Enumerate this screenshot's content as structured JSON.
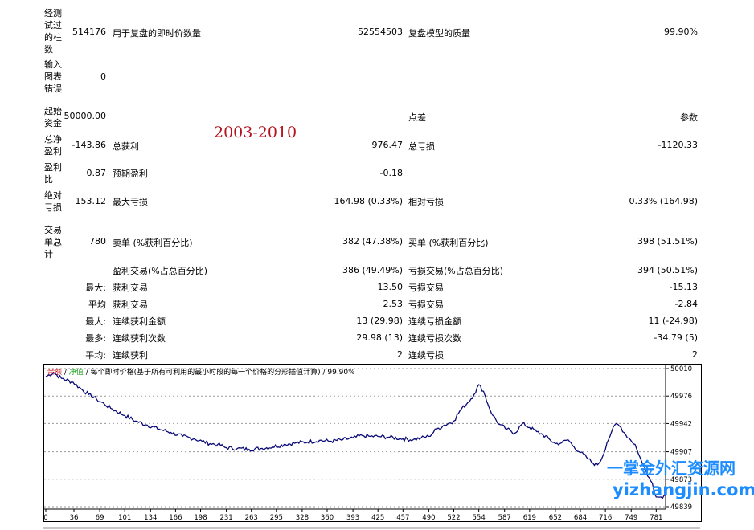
{
  "report": {
    "bars_tested": {
      "label_lines": [
        "经测",
        "试过",
        "的柱",
        "数"
      ],
      "value": "514176"
    },
    "ticks_label": "用于复盘的即时价数量",
    "ticks_value": "52554503",
    "model_quality_label": "复盘模型的质量",
    "model_quality_value": "99.90%",
    "mismatched_charts": {
      "label_lines": [
        "输入",
        "图表",
        "错误"
      ],
      "value": "0"
    },
    "initial_deposit": {
      "label_lines": [
        "起始",
        "资金"
      ],
      "value": "50000.00"
    },
    "spread_label": "点差",
    "params_label": "参数",
    "period_note": "2003-2010",
    "net_profit": {
      "label_lines": [
        "总净",
        "盈利"
      ],
      "value": "-143.86"
    },
    "gross_profit_label": "总获利",
    "gross_profit_value": "976.47",
    "gross_loss_label": "总亏损",
    "gross_loss_value": "-1120.33",
    "profit_factor": {
      "label_lines": [
        "盈利",
        "比"
      ],
      "value": "0.87"
    },
    "expected_payoff_label": "预期盈利",
    "expected_payoff_value": "-0.18",
    "abs_drawdown": {
      "label_lines": [
        "绝对",
        "亏损"
      ],
      "value": "153.12"
    },
    "max_drawdown_label": "最大亏损",
    "max_drawdown_value": "164.98 (0.33%)",
    "rel_drawdown_label": "相对亏损",
    "rel_drawdown_value": "0.33% (164.98)",
    "total_trades": {
      "label_lines": [
        "交易",
        "单总",
        "计"
      ],
      "value": "780"
    },
    "short_label": "卖单 (%获利百分比)",
    "short_value": "382 (47.38%)",
    "long_label": "买单 (%获利百分比)",
    "long_value": "398 (51.51%)",
    "profit_trades_label": "盈利交易(%占总百分比)",
    "profit_trades_value": "386 (49.49%)",
    "loss_trades_label": "亏损交易(%占总百分比)",
    "loss_trades_value": "394 (50.51%)",
    "largest_prefix": "最大:",
    "largest_profit_label": "获利交易",
    "largest_profit_value": "13.50",
    "largest_loss_label": "亏损交易",
    "largest_loss_value": "-15.13",
    "average_prefix": "平均",
    "avg_profit_label": "获利交易",
    "avg_profit_value": "2.53",
    "avg_loss_label": "亏损交易",
    "avg_loss_value": "-2.84",
    "max_prefix": "最大:",
    "max_consec_wins_label": "连续获利金额",
    "max_consec_wins_value": "13 (29.98)",
    "max_consec_losses_label": "连续亏损金额",
    "max_consec_losses_value": "11 (-24.98)",
    "maximal_prefix": "最多:",
    "maximal_consec_profit_label": "连续获利次数",
    "maximal_consec_profit_value": "29.98 (13)",
    "maximal_consec_loss_label": "连续亏损次数",
    "maximal_consec_loss_value": "-34.79 (5)",
    "avg_consec_prefix": "平均:",
    "avg_consec_wins_label": "连续获利",
    "avg_consec_wins_value": "2",
    "avg_consec_losses_label": "连续亏损",
    "avg_consec_losses_value": "2"
  },
  "chart_header": {
    "balance": "余额",
    "equity": "净值",
    "rest": "每个即时价格(基于所有可利用的最小时段的每一个价格的分形插值计算) / 99.90%",
    "balance_color": "#d01818",
    "equity_color": "#18a018"
  },
  "watermark": {
    "line1": "一掌金外汇资源网",
    "line2": "yizhangjin.com"
  },
  "chart_data": {
    "type": "line",
    "series_color": "#0a0a78",
    "x_ticks": [
      0,
      36,
      69,
      101,
      134,
      166,
      198,
      231,
      263,
      295,
      328,
      360,
      393,
      425,
      457,
      490,
      522,
      554,
      587,
      619,
      652,
      684,
      716,
      749,
      781
    ],
    "y_ticks": [
      "50010",
      "49976",
      "49942",
      "49907",
      "49873",
      "49839"
    ],
    "y_tick_values": [
      50010,
      49976,
      49942,
      49907,
      49873,
      49839
    ],
    "xlim": [
      0,
      793
    ],
    "ylim": [
      49836,
      50013
    ],
    "points": [
      [
        0,
        50000
      ],
      [
        10,
        50005
      ],
      [
        20,
        49998
      ],
      [
        35,
        49993
      ],
      [
        45,
        49985
      ],
      [
        55,
        49978
      ],
      [
        65,
        49972
      ],
      [
        75,
        49966
      ],
      [
        85,
        49960
      ],
      [
        101,
        49952
      ],
      [
        115,
        49945
      ],
      [
        130,
        49940
      ],
      [
        145,
        49935
      ],
      [
        160,
        49931
      ],
      [
        175,
        49926
      ],
      [
        190,
        49923
      ],
      [
        200,
        49920
      ],
      [
        210,
        49917
      ],
      [
        220,
        49916
      ],
      [
        231,
        49912
      ],
      [
        245,
        49911
      ],
      [
        260,
        49910
      ],
      [
        275,
        49911
      ],
      [
        290,
        49913
      ],
      [
        305,
        49916
      ],
      [
        320,
        49918
      ],
      [
        335,
        49919
      ],
      [
        350,
        49921
      ],
      [
        365,
        49920
      ],
      [
        380,
        49922
      ],
      [
        393,
        49924
      ],
      [
        405,
        49927
      ],
      [
        415,
        49926
      ],
      [
        425,
        49926
      ],
      [
        440,
        49925
      ],
      [
        457,
        49923
      ],
      [
        470,
        49922
      ],
      [
        480,
        49924
      ],
      [
        490,
        49926
      ],
      [
        500,
        49935
      ],
      [
        510,
        49940
      ],
      [
        522,
        49945
      ],
      [
        530,
        49958
      ],
      [
        540,
        49968
      ],
      [
        548,
        49978
      ],
      [
        554,
        49990
      ],
      [
        560,
        49982
      ],
      [
        566,
        49965
      ],
      [
        572,
        49952
      ],
      [
        580,
        49941
      ],
      [
        590,
        49935
      ],
      [
        600,
        49930
      ],
      [
        610,
        49942
      ],
      [
        619,
        49937
      ],
      [
        628,
        49932
      ],
      [
        636,
        49928
      ],
      [
        645,
        49922
      ],
      [
        652,
        49917
      ],
      [
        660,
        49918
      ],
      [
        668,
        49922
      ],
      [
        676,
        49913
      ],
      [
        684,
        49906
      ],
      [
        692,
        49900
      ],
      [
        700,
        49893
      ],
      [
        706,
        49891
      ],
      [
        712,
        49900
      ],
      [
        718,
        49918
      ],
      [
        724,
        49932
      ],
      [
        730,
        49942
      ],
      [
        736,
        49937
      ],
      [
        742,
        49928
      ],
      [
        748,
        49922
      ],
      [
        754,
        49916
      ],
      [
        758,
        49905
      ],
      [
        762,
        49896
      ],
      [
        766,
        49888
      ],
      [
        770,
        49877
      ],
      [
        776,
        49868
      ],
      [
        781,
        49851
      ],
      [
        787,
        49851
      ],
      [
        793,
        49853
      ]
    ]
  }
}
